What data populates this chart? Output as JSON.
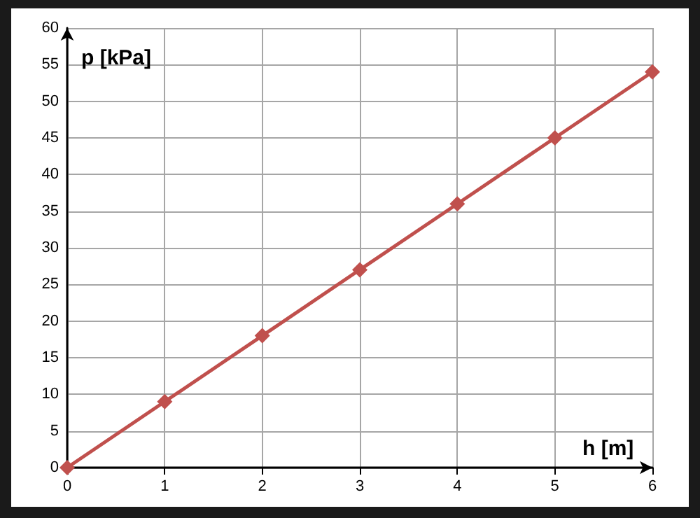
{
  "chart_data": {
    "type": "line",
    "xlabel": "h [m]",
    "ylabel": "p [kPa]",
    "x": [
      0,
      1,
      2,
      3,
      4,
      5,
      6
    ],
    "series": [
      {
        "color": "#c0504d",
        "values": [
          0,
          9,
          18,
          27,
          36,
          45,
          54
        ]
      }
    ],
    "xlim": [
      0,
      6
    ],
    "xticks": [
      0,
      1,
      2,
      3,
      4,
      5,
      6
    ],
    "ylim": [
      0,
      60
    ],
    "yticks": [
      0,
      5,
      10,
      15,
      20,
      25,
      30,
      35,
      40,
      45,
      50,
      55,
      60
    ],
    "grid": true,
    "marker": "diamond",
    "line_style": "solid"
  }
}
